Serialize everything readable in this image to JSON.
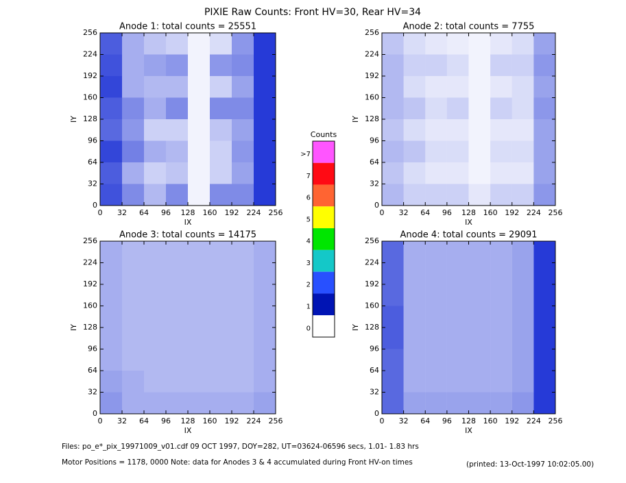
{
  "title": "PIXIE Raw Counts:  Front HV=30, Rear HV=34",
  "footer": {
    "files": "Files: po_e*_pix_19971009_v01.cdf    09 OCT 1997, DOY=282, UT=03624-06596 secs,  1.01- 1.83 hrs",
    "motor": "Motor Positions = 1178, 0000    Note: data for Anodes 3 & 4 accumulated during Front HV-on times",
    "printed": "(printed: 13-Oct-1997 10:02:05.00)"
  },
  "chart_data": [
    {
      "type": "heatmap",
      "title": "Anode 1: total counts = 25551",
      "xlabel": "IX",
      "ylabel": "IY",
      "color": "#0018d0",
      "xlim": [
        0,
        256
      ],
      "ylim": [
        0,
        256
      ],
      "xticks": [
        0,
        32,
        64,
        96,
        128,
        160,
        192,
        224,
        256
      ],
      "yticks": [
        0,
        32,
        64,
        96,
        128,
        160,
        192,
        224,
        256
      ],
      "density": [
        [
          0.7,
          0.35,
          0.25,
          0.2,
          0.05,
          0.15,
          0.45,
          0.85
        ],
        [
          0.75,
          0.35,
          0.4,
          0.45,
          0.05,
          0.45,
          0.5,
          0.85
        ],
        [
          0.8,
          0.35,
          0.3,
          0.3,
          0.05,
          0.2,
          0.4,
          0.85
        ],
        [
          0.7,
          0.5,
          0.35,
          0.5,
          0.05,
          0.5,
          0.5,
          0.85
        ],
        [
          0.65,
          0.45,
          0.2,
          0.2,
          0.05,
          0.25,
          0.4,
          0.85
        ],
        [
          0.8,
          0.55,
          0.35,
          0.3,
          0.05,
          0.2,
          0.45,
          0.85
        ],
        [
          0.7,
          0.35,
          0.2,
          0.25,
          0.05,
          0.2,
          0.4,
          0.85
        ],
        [
          0.75,
          0.5,
          0.3,
          0.5,
          0.05,
          0.5,
          0.5,
          0.85
        ]
      ]
    },
    {
      "type": "heatmap",
      "title": "Anode 2: total counts = 7755",
      "xlabel": "IX",
      "ylabel": "IY",
      "color": "#0018d0",
      "xlim": [
        0,
        256
      ],
      "ylim": [
        0,
        256
      ],
      "xticks": [
        0,
        32,
        64,
        96,
        128,
        160,
        192,
        224,
        256
      ],
      "yticks": [
        0,
        32,
        64,
        96,
        128,
        160,
        192,
        224,
        256
      ],
      "density": [
        [
          0.25,
          0.15,
          0.1,
          0.08,
          0.05,
          0.1,
          0.15,
          0.4
        ],
        [
          0.3,
          0.2,
          0.2,
          0.15,
          0.05,
          0.2,
          0.2,
          0.45
        ],
        [
          0.3,
          0.15,
          0.1,
          0.1,
          0.05,
          0.1,
          0.15,
          0.4
        ],
        [
          0.3,
          0.25,
          0.15,
          0.2,
          0.05,
          0.2,
          0.15,
          0.45
        ],
        [
          0.25,
          0.15,
          0.1,
          0.1,
          0.05,
          0.1,
          0.1,
          0.4
        ],
        [
          0.3,
          0.25,
          0.15,
          0.15,
          0.05,
          0.15,
          0.15,
          0.4
        ],
        [
          0.25,
          0.15,
          0.1,
          0.1,
          0.05,
          0.1,
          0.1,
          0.4
        ],
        [
          0.3,
          0.2,
          0.2,
          0.2,
          0.1,
          0.2,
          0.2,
          0.45
        ]
      ]
    },
    {
      "type": "heatmap",
      "title": "Anode 3: total counts = 14175",
      "xlabel": "IX",
      "ylabel": "IY",
      "color": "#0018d0",
      "xlim": [
        0,
        256
      ],
      "ylim": [
        0,
        256
      ],
      "xticks": [
        0,
        32,
        64,
        96,
        128,
        160,
        192,
        224,
        256
      ],
      "yticks": [
        0,
        32,
        64,
        96,
        128,
        160,
        192,
        224,
        256
      ],
      "density": [
        [
          0.35,
          0.3,
          0.3,
          0.3,
          0.3,
          0.3,
          0.3,
          0.35
        ],
        [
          0.35,
          0.3,
          0.3,
          0.3,
          0.3,
          0.3,
          0.3,
          0.35
        ],
        [
          0.35,
          0.3,
          0.3,
          0.3,
          0.3,
          0.3,
          0.3,
          0.35
        ],
        [
          0.35,
          0.3,
          0.3,
          0.3,
          0.3,
          0.3,
          0.3,
          0.35
        ],
        [
          0.35,
          0.3,
          0.3,
          0.3,
          0.3,
          0.3,
          0.3,
          0.35
        ],
        [
          0.35,
          0.3,
          0.3,
          0.3,
          0.3,
          0.3,
          0.3,
          0.35
        ],
        [
          0.4,
          0.35,
          0.3,
          0.3,
          0.3,
          0.3,
          0.3,
          0.35
        ],
        [
          0.45,
          0.35,
          0.35,
          0.35,
          0.35,
          0.35,
          0.35,
          0.4
        ]
      ]
    },
    {
      "type": "heatmap",
      "title": "Anode 4: total counts = 29091",
      "xlabel": "IX",
      "ylabel": "IY",
      "color": "#0018d0",
      "xlim": [
        0,
        256
      ],
      "ylim": [
        0,
        256
      ],
      "xticks": [
        0,
        32,
        64,
        96,
        128,
        160,
        192,
        224,
        256
      ],
      "yticks": [
        0,
        32,
        64,
        96,
        128,
        160,
        192,
        224,
        256
      ],
      "density": [
        [
          0.65,
          0.35,
          0.35,
          0.35,
          0.35,
          0.35,
          0.4,
          0.85
        ],
        [
          0.65,
          0.35,
          0.35,
          0.35,
          0.35,
          0.35,
          0.4,
          0.85
        ],
        [
          0.65,
          0.35,
          0.35,
          0.35,
          0.35,
          0.35,
          0.4,
          0.85
        ],
        [
          0.7,
          0.35,
          0.35,
          0.35,
          0.35,
          0.35,
          0.4,
          0.85
        ],
        [
          0.7,
          0.35,
          0.35,
          0.35,
          0.35,
          0.35,
          0.4,
          0.85
        ],
        [
          0.65,
          0.35,
          0.35,
          0.35,
          0.35,
          0.35,
          0.4,
          0.85
        ],
        [
          0.65,
          0.35,
          0.35,
          0.35,
          0.35,
          0.35,
          0.4,
          0.85
        ],
        [
          0.65,
          0.4,
          0.4,
          0.4,
          0.4,
          0.4,
          0.45,
          0.85
        ]
      ]
    },
    {
      "type": "colorbar",
      "title": "Counts",
      "categories": [
        ">7",
        "7",
        "6",
        "5",
        "4",
        "3",
        "2",
        "1",
        "0"
      ],
      "colors": [
        "#ff55ff",
        "#ff0a14",
        "#ff6432",
        "#ffff00",
        "#00e600",
        "#14c8c8",
        "#2850ff",
        "#0014b4",
        "#ffffff"
      ]
    }
  ]
}
